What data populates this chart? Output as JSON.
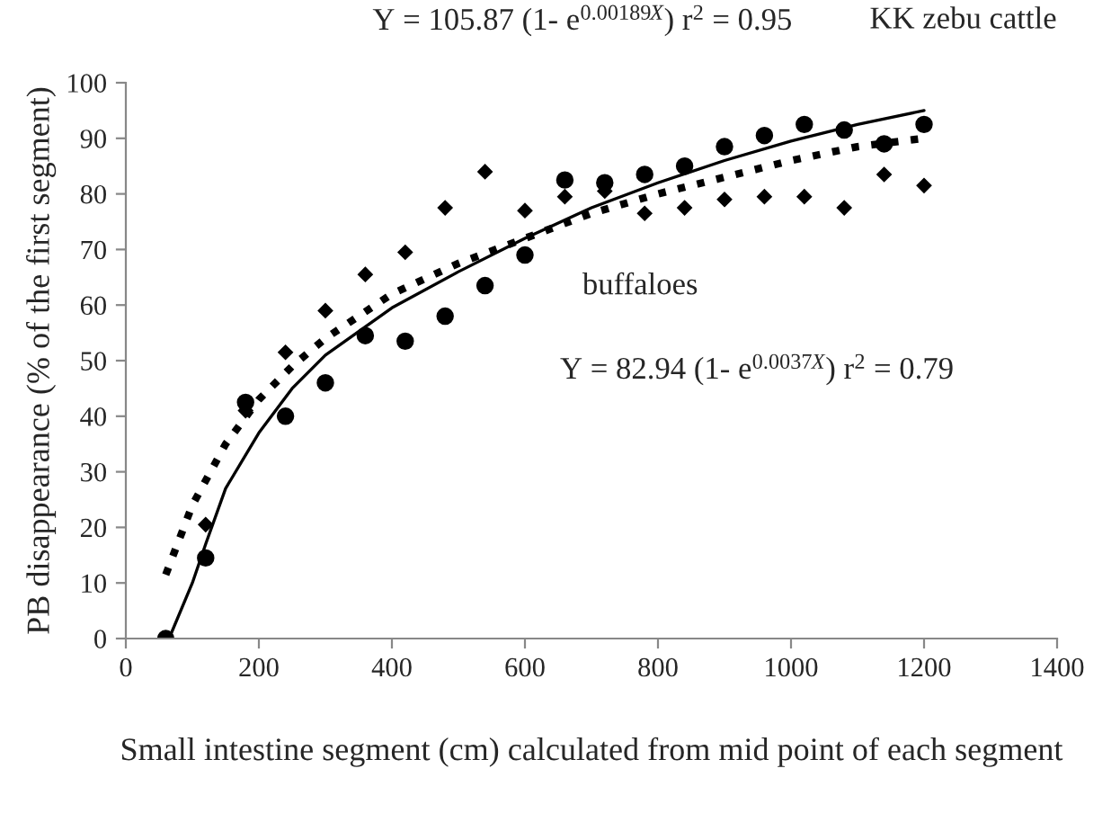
{
  "chart_data": {
    "type": "scatter",
    "xlabel": "Small intestine segment (cm) calculated from mid point of each segment",
    "ylabel": "PB disappearance (% of the first segment)",
    "xlim": [
      0,
      1400
    ],
    "xticks": [
      0,
      200,
      400,
      600,
      800,
      1000,
      1200,
      1400
    ],
    "ylim": [
      0,
      100
    ],
    "yticks": [
      0,
      10,
      20,
      30,
      40,
      50,
      60,
      70,
      80,
      90,
      100
    ],
    "grid": false,
    "legend": false,
    "x": [
      60,
      120,
      180,
      240,
      300,
      360,
      420,
      480,
      540,
      600,
      660,
      720,
      780,
      840,
      900,
      960,
      1020,
      1080,
      1140,
      1200
    ],
    "series": [
      {
        "marker": "circle",
        "color": "#000000",
        "values": [
          0,
          14.5,
          42.5,
          40,
          46,
          54.5,
          53.5,
          58,
          63.5,
          69,
          82.5,
          82,
          83.5,
          85,
          88.5,
          90.5,
          92.5,
          91.5,
          89,
          92.5
        ]
      },
      {
        "marker": "diamond",
        "color": "#000000",
        "values": [
          null,
          20.5,
          41,
          51.5,
          59,
          65.5,
          69.5,
          77.5,
          84,
          77,
          79.5,
          80.5,
          76.5,
          77.5,
          79,
          79.5,
          79.5,
          77.5,
          83.5,
          81.5
        ]
      },
      {
        "type": "line",
        "line_style": "solid",
        "color": "#000000",
        "x": [
          65,
          100,
          120,
          150,
          200,
          250,
          300,
          400,
          500,
          600,
          700,
          800,
          900,
          1000,
          1100,
          1200
        ],
        "values": [
          0,
          10,
          17,
          27,
          37,
          45,
          51,
          59.5,
          66,
          72,
          77.5,
          82,
          86,
          89.5,
          92.5,
          95
        ]
      },
      {
        "type": "line",
        "line_style": "dotted",
        "color": "#000000",
        "x": [
          60,
          100,
          150,
          200,
          250,
          300,
          400,
          500,
          600,
          700,
          800,
          900,
          1000,
          1100,
          1200
        ],
        "values": [
          11.5,
          24,
          35,
          43,
          49,
          54,
          62,
          67.5,
          72,
          76.5,
          80,
          83,
          86,
          88.5,
          90
        ]
      }
    ],
    "annotations": [
      "Y = 105.87 (1- e$^{0.00189X}$) r$^{2}$ = 0.95",
      "KK zebu cattle",
      "buffaloes",
      "Y = 82.94 (1- e$^{0.0037X}$) r$^{2}$ = 0.79"
    ]
  }
}
